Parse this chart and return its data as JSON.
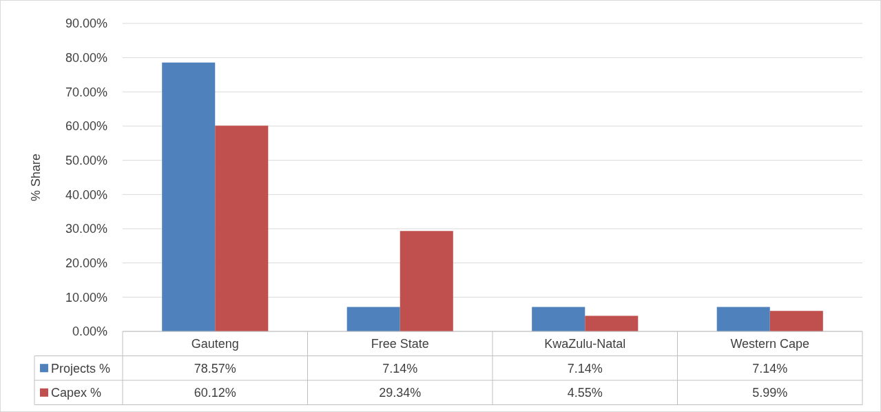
{
  "chart_data": {
    "type": "bar",
    "ylabel": "% Share",
    "categories": [
      "Gauteng",
      "Free State",
      "KwaZulu-Natal",
      "Western Cape"
    ],
    "series": [
      {
        "name": "Projects %",
        "color": "#4f81bd",
        "values": [
          78.57,
          7.14,
          7.14,
          7.14
        ],
        "value_labels": [
          "78.57%",
          "7.14%",
          "7.14%",
          "7.14%"
        ]
      },
      {
        "name": "Capex %",
        "color": "#c0504d",
        "values": [
          60.12,
          29.34,
          4.55,
          5.99
        ],
        "value_labels": [
          "60.12%",
          "29.34%",
          "4.55%",
          "5.99%"
        ]
      }
    ],
    "ylim": [
      0,
      90
    ],
    "yticks": [
      {
        "value": 0,
        "label": "0.00%"
      },
      {
        "value": 10,
        "label": "10.00%"
      },
      {
        "value": 20,
        "label": "20.00%"
      },
      {
        "value": 30,
        "label": "30.00%"
      },
      {
        "value": 40,
        "label": "40.00%"
      },
      {
        "value": 50,
        "label": "50.00%"
      },
      {
        "value": 60,
        "label": "60.00%"
      },
      {
        "value": 70,
        "label": "70.00%"
      },
      {
        "value": 80,
        "label": "80.00%"
      },
      {
        "value": 90,
        "label": "90.00%"
      }
    ],
    "grid": "y",
    "legend": "bottom left"
  }
}
